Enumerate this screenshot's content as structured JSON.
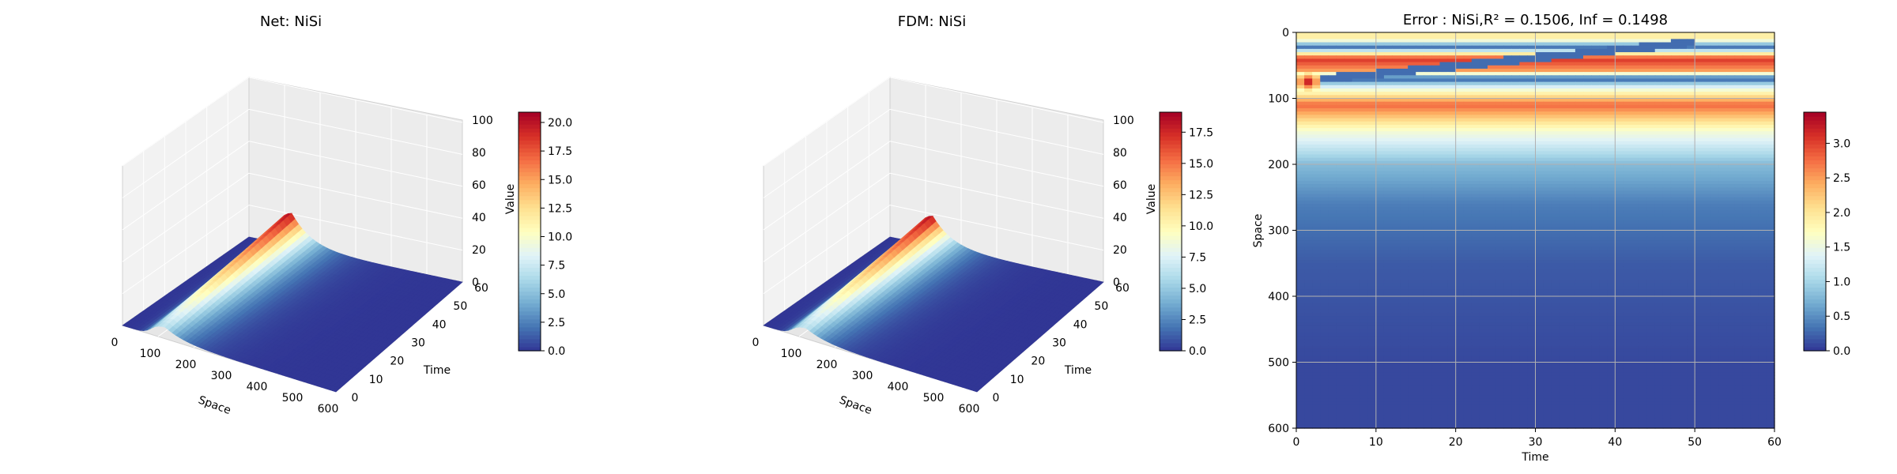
{
  "chart_data": [
    {
      "type": "surface3d",
      "title": "Net: NiSi",
      "xlabel": "Space",
      "ylabel": "Time",
      "zlabel": "Value",
      "xlim": [
        0,
        600
      ],
      "ylim": [
        0,
        60
      ],
      "zlim": [
        0,
        100
      ],
      "x_ticks": [
        "0",
        "100",
        "200",
        "300",
        "400",
        "500",
        "600"
      ],
      "y_ticks": [
        "0",
        "10",
        "20",
        "30",
        "40",
        "50",
        "60"
      ],
      "z_ticks": [
        "0",
        "20",
        "40",
        "60",
        "80",
        "100"
      ],
      "peak_value": 20.9,
      "peak_space": 120,
      "colormap": "RdYlBu_r",
      "colorbar": {
        "min": 0.0,
        "max": 20.9,
        "ticks": [
          "0.0",
          "2.5",
          "5.0",
          "7.5",
          "10.0",
          "12.5",
          "15.0",
          "17.5",
          "20.0"
        ]
      }
    },
    {
      "type": "surface3d",
      "title": "FDM: NiSi",
      "xlabel": "Space",
      "ylabel": "Time",
      "zlabel": "Value",
      "xlim": [
        0,
        600
      ],
      "ylim": [
        0,
        60
      ],
      "zlim": [
        0,
        100
      ],
      "x_ticks": [
        "0",
        "100",
        "200",
        "300",
        "400",
        "500",
        "600"
      ],
      "y_ticks": [
        "0",
        "10",
        "20",
        "30",
        "40",
        "50",
        "60"
      ],
      "z_ticks": [
        "0",
        "20",
        "40",
        "60",
        "80",
        "100"
      ],
      "peak_value": 19.1,
      "peak_space": 120,
      "colormap": "RdYlBu_r",
      "colorbar": {
        "min": 0.0,
        "max": 19.1,
        "ticks": [
          "0.0",
          "2.5",
          "5.0",
          "7.5",
          "10.0",
          "12.5",
          "15.0",
          "17.5"
        ]
      }
    },
    {
      "type": "heatmap",
      "title": "Error : NiSi,R² = 0.1506, Inf = 0.1498",
      "xlabel": "Time",
      "ylabel": "Space",
      "xlim": [
        0,
        60
      ],
      "ylim": [
        600,
        0
      ],
      "x_ticks": [
        "0",
        "10",
        "20",
        "30",
        "40",
        "50",
        "60"
      ],
      "y_ticks": [
        "0",
        "100",
        "200",
        "300",
        "400",
        "500",
        "600"
      ],
      "grid": true,
      "colormap": "RdYlBu_r",
      "colorbar": {
        "min": 0.0,
        "max": 3.45,
        "ticks": [
          "0.0",
          "0.5",
          "1.0",
          "1.5",
          "2.0",
          "2.5",
          "3.0"
        ]
      },
      "bands": [
        {
          "space": 10,
          "error": 1.9
        },
        {
          "space": 22,
          "error": 0.3
        },
        {
          "space": 40,
          "error": 3.1
        },
        {
          "space": 58,
          "error": 2.5
        },
        {
          "space": 70,
          "error": 0.1
        },
        {
          "space": 80,
          "error": 1.2
        },
        {
          "space": 110,
          "error": 2.8
        },
        {
          "space": 150,
          "error": 1.6
        },
        {
          "space": 200,
          "error": 0.8
        },
        {
          "space": 260,
          "error": 0.4
        },
        {
          "space": 350,
          "error": 0.2
        },
        {
          "space": 500,
          "error": 0.1
        }
      ],
      "hotspot": {
        "time": 1.5,
        "space": 75,
        "error": 3.45
      }
    }
  ]
}
